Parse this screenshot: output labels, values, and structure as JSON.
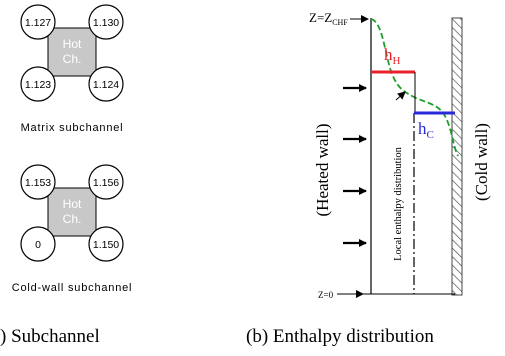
{
  "left_panel": {
    "matrix": {
      "rods": [
        "1.127",
        "1.130",
        "1.123",
        "1.124"
      ],
      "center": [
        "Hot",
        "Ch."
      ],
      "caption": "Matrix subchannel"
    },
    "coldwall": {
      "rods": [
        "1.153",
        "1.156",
        "0",
        "1.150"
      ],
      "center": [
        "Hot",
        "Ch."
      ],
      "caption": "Cold-wall subchannel"
    },
    "caption": ") Subchannel"
  },
  "right_panel": {
    "z_top": "Z=Z",
    "z_top_sub": "CHF",
    "z_bottom": "Z=0",
    "h_hot": "h",
    "h_hot_sub": "H",
    "h_cold": "h",
    "h_cold_sub": "C",
    "heated_wall": "(Heated wall)",
    "cold_wall": "(Cold wall)",
    "local_label": "Local enthalpy distribution",
    "caption": "(b) Enthalpy distribution"
  },
  "colors": {
    "hot_line": "#e8202a",
    "cold_line": "#2a2ad8",
    "curve": "#1e9e2a",
    "channel_fill": "#c8c8c8"
  }
}
